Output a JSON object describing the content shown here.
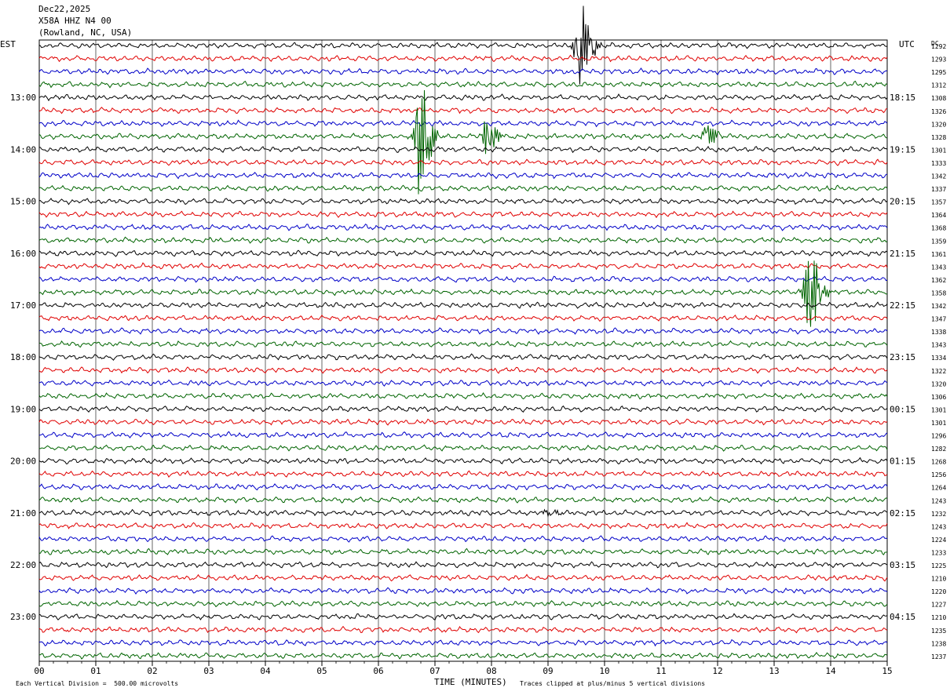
{
  "header": {
    "date": "Dec22,2025",
    "station": "X58A HHZ N4 00",
    "location": "(Rowland, NC, USA)"
  },
  "axes": {
    "left_label": "EST",
    "right_label": "UTC",
    "dc_label": "DC",
    "xlabel": "TIME (MINUTES)"
  },
  "footer": {
    "scale_note": "Each Vertical Division =  500.00 microvolts",
    "clip_note": "Traces clipped at plus/minus 5 vertical divisions"
  },
  "chart_data": {
    "type": "line",
    "x_ticks": [
      "00",
      "01",
      "02",
      "03",
      "04",
      "05",
      "06",
      "07",
      "08",
      "09",
      "10",
      "11",
      "12",
      "13",
      "14",
      "15"
    ],
    "xlim": [
      0,
      15
    ],
    "trace_colors": [
      "#000000",
      "#e00000",
      "#0000c8",
      "#006400"
    ],
    "est_hour_labels": [
      "13:00",
      "14:00",
      "15:00",
      "16:00",
      "17:00",
      "18:00",
      "19:00",
      "20:00",
      "21:00",
      "22:00",
      "23:00"
    ],
    "utc_hour_labels": [
      "18:15",
      "19:15",
      "20:15",
      "21:15",
      "22:15",
      "23:15",
      "00:15",
      "01:15",
      "02:15",
      "03:15",
      "04:15"
    ],
    "dc_offsets": [
      1292,
      1293,
      1295,
      1312,
      1308,
      1326,
      1320,
      1328,
      1301,
      1333,
      1342,
      1337,
      1357,
      1364,
      1368,
      1359,
      1361,
      1343,
      1362,
      1358,
      1342,
      1347,
      1338,
      1343,
      1334,
      1322,
      1320,
      1306,
      1301,
      1301,
      1296,
      1282,
      1268,
      1256,
      1264,
      1243,
      1232,
      1243,
      1224,
      1233,
      1225,
      1210,
      1220,
      1227,
      1210,
      1235,
      1238,
      1237
    ],
    "events": [
      {
        "trace": 0,
        "minute": 9.55,
        "amp": 60
      },
      {
        "trace": 7,
        "minute": 6.7,
        "amp": 80
      },
      {
        "trace": 7,
        "minute": 7.9,
        "amp": 25
      },
      {
        "trace": 7,
        "minute": 11.8,
        "amp": 18
      },
      {
        "trace": 19,
        "minute": 13.6,
        "amp": 70
      },
      {
        "trace": 36,
        "minute": 9.0,
        "amp": 5
      }
    ]
  }
}
